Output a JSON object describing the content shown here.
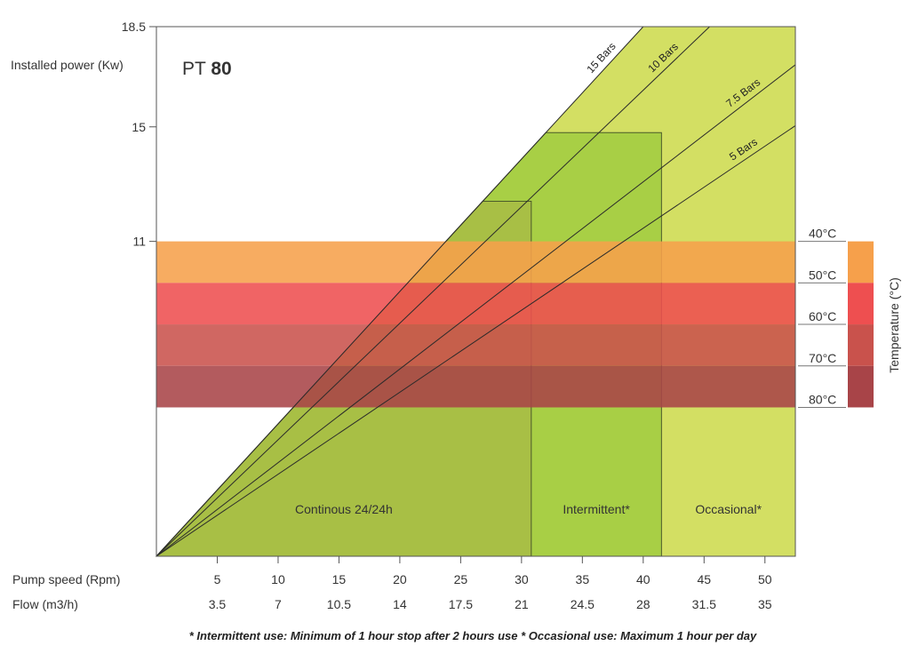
{
  "chart_data": {
    "type": "area",
    "title_prefix": "PT",
    "title_model": "80",
    "ylabel": "Installed power (Kw)",
    "y_ticks": [
      "18.5",
      "15",
      "11"
    ],
    "ylim": [
      0,
      18.5
    ],
    "x_rows": [
      {
        "label": "Pump speed (Rpm)",
        "values": [
          "5",
          "10",
          "15",
          "20",
          "25",
          "30",
          "35",
          "40",
          "45",
          "50"
        ]
      },
      {
        "label": "Flow (m3/h)",
        "values": [
          "3.5",
          "7",
          "10.5",
          "14",
          "17.5",
          "21",
          "24.5",
          "28",
          "31.5",
          "35"
        ]
      }
    ],
    "xlim_rpm": [
      0,
      52.5
    ],
    "pressure_lines": [
      {
        "label": "15 Bars",
        "kw_per_rpm": 0.4625
      },
      {
        "label": "10 Bars",
        "kw_per_rpm": 0.407
      },
      {
        "label": "7.5 Bars",
        "kw_per_rpm": 0.327
      },
      {
        "label": "5 Bars",
        "kw_per_rpm": 0.2865
      }
    ],
    "zones": [
      {
        "label": "Continous 24/24h",
        "rpm_max": 30.8,
        "kw_max": 12.4,
        "color": "#a8bf45"
      },
      {
        "label": "Intermittent*",
        "rpm_max": 41.5,
        "kw_max": 14.8,
        "color": "#a8cf45"
      },
      {
        "label": "Occasional*",
        "rpm_max": 52.5,
        "kw_max": 18.5,
        "color": "#d3df63"
      }
    ],
    "temperature": {
      "axis_label": "Temperature (°C)",
      "boundaries": [
        "40°C",
        "50°C",
        "60°C",
        "70°C",
        "80°C"
      ],
      "boundary_kw": [
        11.0,
        9.55,
        8.1,
        6.65,
        5.2
      ],
      "band_colors": [
        "#f6a04b",
        "#ee4f50",
        "#c9524c",
        "#a84448"
      ]
    }
  },
  "footnote": "* Intermittent use: Minimum of 1 hour stop after 2 hours use  * Occasional use: Maximum 1 hour per day"
}
